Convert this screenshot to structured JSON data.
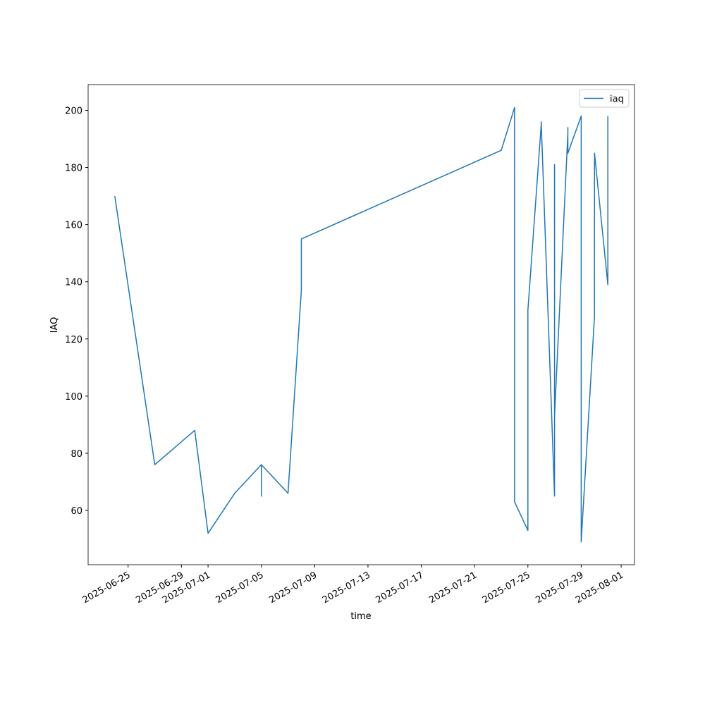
{
  "chart_data": {
    "type": "line",
    "x_label": "time",
    "y_label": "IAQ",
    "x": [
      "2025-06-24",
      "2025-06-27",
      "2025-06-30",
      "2025-07-01",
      "2025-07-03",
      "2025-07-05",
      "2025-07-05",
      "2025-07-05",
      "2025-07-07",
      "2025-07-08",
      "2025-07-08",
      "2025-07-23",
      "2025-07-24",
      "2025-07-24",
      "2025-07-24",
      "2025-07-25",
      "2025-07-25",
      "2025-07-25",
      "2025-07-25",
      "2025-07-26",
      "2025-07-26",
      "2025-07-27",
      "2025-07-27",
      "2025-07-27",
      "2025-07-27",
      "2025-07-28",
      "2025-07-28",
      "2025-07-28",
      "2025-07-29",
      "2025-07-29",
      "2025-07-30",
      "2025-07-30",
      "2025-07-31",
      "2025-07-31",
      "2025-07-31",
      "2025-07-31"
    ],
    "series": [
      {
        "name": "iaq",
        "color": "#1f77b4",
        "values": [
          170,
          76,
          88,
          52,
          66,
          76,
          65,
          76,
          66,
          137,
          155,
          186,
          201,
          176,
          63,
          53,
          65,
          90,
          130,
          195,
          196,
          65,
          181,
          175,
          93,
          192,
          194,
          185,
          198,
          49,
          128,
          185,
          139,
          185,
          196,
          198
        ]
      }
    ],
    "xlim": [
      "2025-06-22",
      "2025-08-02"
    ],
    "xticks": [
      "2025-06-25",
      "2025-06-29",
      "2025-07-01",
      "2025-07-05",
      "2025-07-09",
      "2025-07-13",
      "2025-07-17",
      "2025-07-21",
      "2025-07-25",
      "2025-07-29",
      "2025-08-01"
    ],
    "ylim": [
      41,
      209
    ],
    "yticks": [
      60,
      80,
      100,
      120,
      140,
      160,
      180,
      200
    ],
    "legend": "upper right"
  }
}
